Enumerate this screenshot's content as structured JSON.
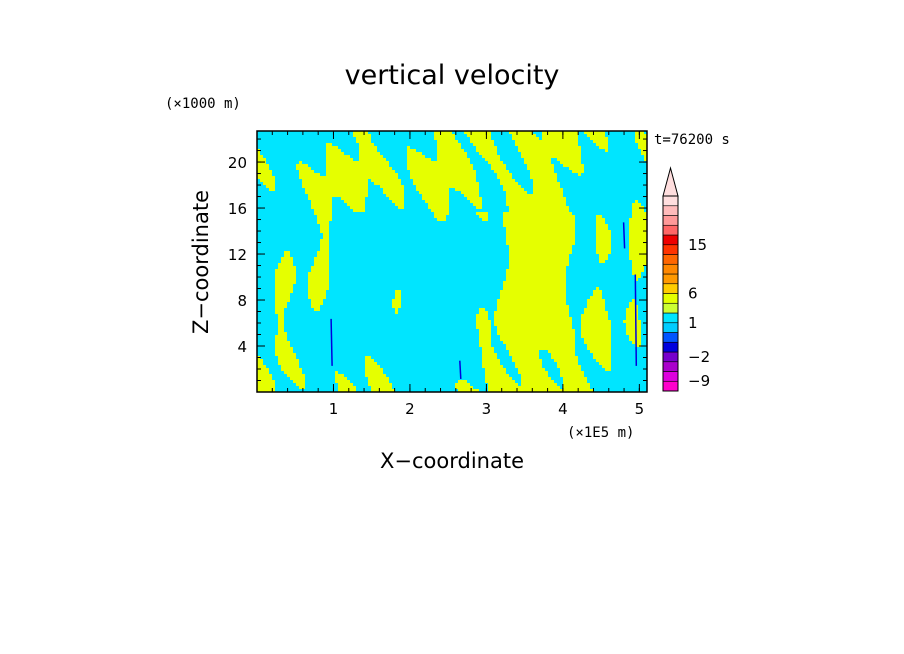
{
  "chart_data": {
    "type": "heatmap",
    "title": "vertical velocity",
    "xlabel": "X−coordinate",
    "ylabel": "Z−coordinate",
    "x_unit_label": "(×1E5 m)",
    "y_unit_label": "(×1000 m)",
    "time_label": "t=76200 s",
    "xlim": [
      0,
      5.1
    ],
    "ylim": [
      0,
      22.7
    ],
    "x_ticks": [
      {
        "value": 1,
        "label": "1"
      },
      {
        "value": 2,
        "label": "2"
      },
      {
        "value": 3,
        "label": "3"
      },
      {
        "value": 4,
        "label": "4"
      },
      {
        "value": 5,
        "label": "5"
      }
    ],
    "y_ticks": [
      {
        "value": 4,
        "label": "4"
      },
      {
        "value": 8,
        "label": "8"
      },
      {
        "value": 12,
        "label": "12"
      },
      {
        "value": 16,
        "label": "16"
      },
      {
        "value": 20,
        "label": "20"
      }
    ],
    "colorbar": {
      "levels": [
        {
          "color": "#ff00cc"
        },
        {
          "color": "#dd00dd"
        },
        {
          "color": "#aa00cc"
        },
        {
          "color": "#7700cc"
        },
        {
          "color": "#0000dd"
        },
        {
          "color": "#0055ff"
        },
        {
          "color": "#00ccff"
        },
        {
          "color": "#00e5ff"
        },
        {
          "color": "#ccff33"
        },
        {
          "color": "#e5ff00"
        },
        {
          "color": "#ffcc00"
        },
        {
          "color": "#ff9900"
        },
        {
          "color": "#ff8800"
        },
        {
          "color": "#ff6600"
        },
        {
          "color": "#ff3300"
        },
        {
          "color": "#ee0000"
        },
        {
          "color": "#ff6666"
        },
        {
          "color": "#ff9999"
        },
        {
          "color": "#ffbbbb"
        },
        {
          "color": "#ffdede"
        }
      ],
      "tick_labels": [
        {
          "value": 15,
          "label": "15"
        },
        {
          "value": 6,
          "label": "6"
        },
        {
          "value": 1,
          "label": "1"
        },
        {
          "value": -2,
          "label": "−2"
        },
        {
          "value": -9,
          "label": "−9"
        }
      ]
    },
    "colors": {
      "cyan": "#00e5ff",
      "yellow": "#e5ff00"
    }
  }
}
